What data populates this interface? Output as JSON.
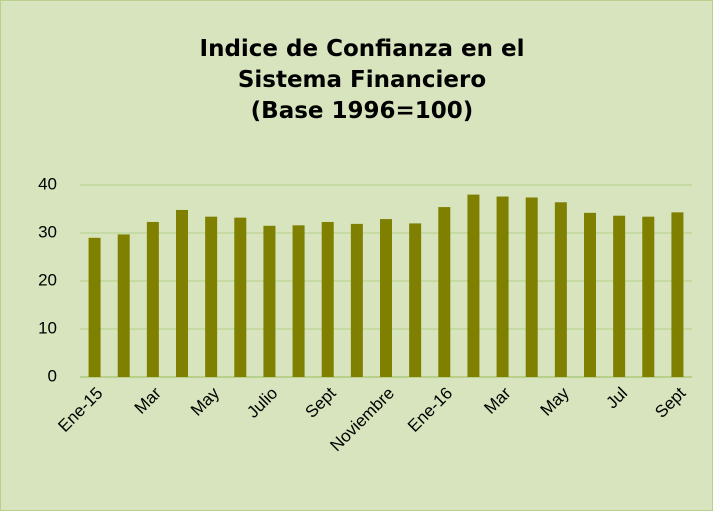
{
  "chart_data": {
    "type": "bar",
    "title": "Indice de Confianza en el Sistema Financiero",
    "subtitle": "(Base 1996=100)",
    "categories": [
      "Ene-15",
      null,
      "Mar",
      null,
      "May",
      null,
      "Julio",
      null,
      "Sept",
      null,
      "Noviembre",
      null,
      "Ene-16",
      null,
      "Mar",
      null,
      "May",
      null,
      "Jul",
      null,
      "Sept"
    ],
    "values": [
      29,
      29.7,
      32.3,
      34.8,
      33.4,
      33.2,
      31.5,
      31.6,
      32.3,
      31.9,
      32.9,
      32,
      35.4,
      38,
      37.6,
      37.4,
      36.4,
      34.2,
      33.6,
      33.4,
      34.3
    ],
    "color": "#7f7f00",
    "ylim": [
      0,
      40
    ],
    "yticks": [
      0,
      10,
      20,
      30,
      40
    ],
    "grid": true
  }
}
